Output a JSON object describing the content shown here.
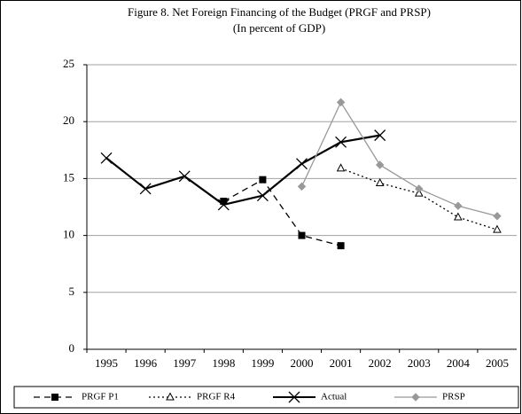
{
  "chart_data": {
    "type": "line",
    "title": "Figure 8. Net Foreign Financing of the Budget (PRGF and PRSP)",
    "subtitle": "(In percent of GDP)",
    "categories": [
      "1995",
      "1996",
      "1997",
      "1998",
      "1999",
      "2000",
      "2001",
      "2002",
      "2003",
      "2004",
      "2005"
    ],
    "series": [
      {
        "name": "PRGF P1",
        "color": "#000000",
        "dash": "dashed",
        "marker": "square",
        "values": [
          null,
          null,
          null,
          13.0,
          14.9,
          10.0,
          9.1,
          null,
          null,
          null,
          null
        ]
      },
      {
        "name": "PRGF R4",
        "color": "#000000",
        "dash": "dotted",
        "marker": "triangle",
        "values": [
          null,
          null,
          null,
          null,
          null,
          null,
          15.9,
          14.6,
          13.7,
          11.6,
          10.5
        ]
      },
      {
        "name": "Actual",
        "color": "#000000",
        "dash": "solid",
        "marker": "x",
        "values": [
          16.8,
          14.1,
          15.2,
          12.7,
          13.5,
          16.3,
          18.2,
          18.8,
          null,
          null,
          null
        ]
      },
      {
        "name": "PRSP",
        "color": "#999999",
        "dash": "solid",
        "marker": "diamond",
        "values": [
          null,
          null,
          null,
          null,
          null,
          14.3,
          21.7,
          16.2,
          14.1,
          12.6,
          11.7
        ]
      }
    ],
    "ylim": [
      0,
      25
    ],
    "yticks": [
      0,
      5,
      10,
      15,
      20,
      25
    ],
    "grid": true,
    "legend": "bottom"
  }
}
